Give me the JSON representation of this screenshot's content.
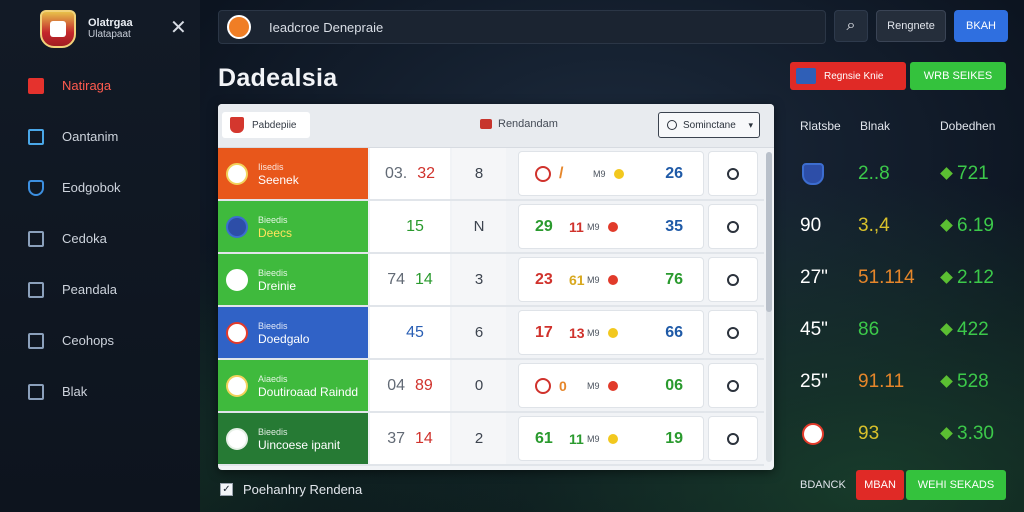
{
  "colors": {
    "accent_red": "#e02a26",
    "accent_green": "#34c23d",
    "accent_blue": "#2f6fe0",
    "bg": "#0c1420"
  },
  "brand": {
    "title": "Olatrgaa",
    "subtitle": "Ulatapaat"
  },
  "sidebar": {
    "items": [
      {
        "label": "Natiraga",
        "icon": "flag-icon"
      },
      {
        "label": "Oantanim",
        "icon": "chart-icon"
      },
      {
        "label": "Eodgobok",
        "icon": "shield-icon"
      },
      {
        "label": "Cedoka",
        "icon": "square-icon"
      },
      {
        "label": "Peandala",
        "icon": "document-icon"
      },
      {
        "label": "Ceohops",
        "icon": "puzzle-icon"
      },
      {
        "label": "Blak",
        "icon": "grid-icon"
      }
    ]
  },
  "header": {
    "search_text": "Ieadcroe Denepraie",
    "register_label": "Rengnete",
    "login_label": "BKAH"
  },
  "page": {
    "title": "Dadealsia",
    "red_action_label": "Regnsie Knie",
    "green_action_label": "WRB SEIKES"
  },
  "panel": {
    "league_chip": "Pabdepiie",
    "center_label": "Rendandam",
    "select_label": "Sominctane",
    "rows": [
      {
        "league": "Iisedis",
        "team": "Seenek",
        "score_a": "03.",
        "score_b": "32",
        "mid": "8",
        "mc_a": "/",
        "mc_b": "",
        "mc_mid": "M9",
        "mc_score": "26"
      },
      {
        "league": "Bieedis",
        "team": "Deecs",
        "score_a": "",
        "score_b": "15",
        "mid": "N",
        "mc_a": "29",
        "mc_b": "11",
        "mc_mid": "M9",
        "mc_score": "35"
      },
      {
        "league": "Bieedis",
        "team": "Dreinie",
        "score_a": "74",
        "score_b": "14",
        "mid": "3",
        "mc_a": "23",
        "mc_b": "61",
        "mc_mid": "M9",
        "mc_score": "76"
      },
      {
        "league": "Bieedis",
        "team": "Doedgalo",
        "score_a": "",
        "score_b": "45",
        "mid": "6",
        "mc_a": "17",
        "mc_b": "13",
        "mc_mid": "M9",
        "mc_score": "66"
      },
      {
        "league": "Aiaedis",
        "team": "Doutiroaad Raindd",
        "score_a": "04",
        "score_b": "89",
        "mid": "0",
        "mc_a": "",
        "mc_b": "0",
        "mc_mid": "M9",
        "mc_score": "06"
      },
      {
        "league": "Bieedis",
        "team": "Uincoese ipanit",
        "score_a": "37",
        "score_b": "14",
        "mid": "2",
        "mc_a": "61",
        "mc_b": "11",
        "mc_mid": "M9",
        "mc_score": "19"
      }
    ]
  },
  "footer": {
    "checkbox_label": "Poehanhry Rendena",
    "odds_label": "BDANCK",
    "odds_red": "MBAN",
    "odds_green": "WEHI SEKADS"
  },
  "odds": {
    "headers": [
      "Rlatsbe",
      "Blnak",
      "Dobedhen"
    ],
    "rows": [
      {
        "c1": "",
        "c2": "2..8",
        "c3": "721"
      },
      {
        "c1": "90",
        "c2": "3.,4",
        "c3": "6.19"
      },
      {
        "c1": "27\"",
        "c2": "51.114",
        "c3": "2.12"
      },
      {
        "c1": "45\"",
        "c2": "86",
        "c3": "422"
      },
      {
        "c1": "25\"",
        "c2": "91.11",
        "c3": "528"
      },
      {
        "c1": "",
        "c2": "93",
        "c3": "3.30"
      }
    ]
  }
}
